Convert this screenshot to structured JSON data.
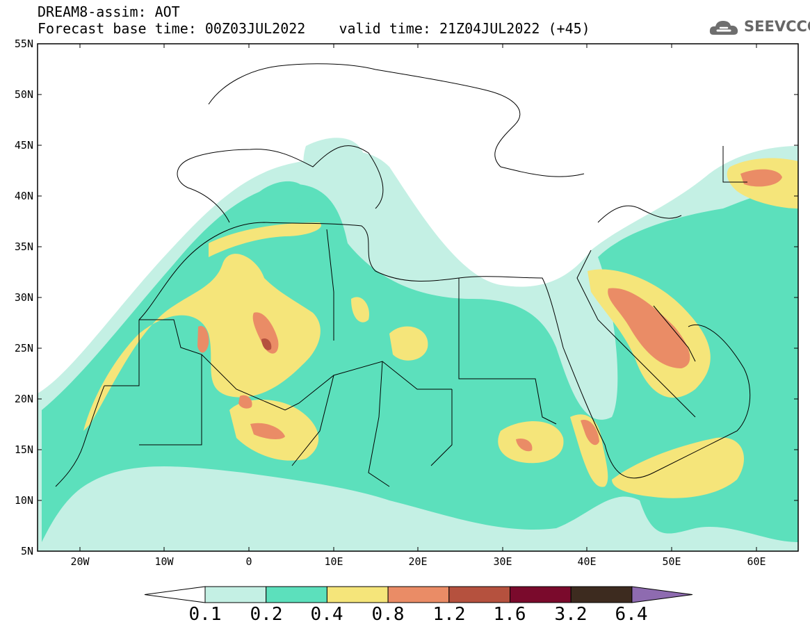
{
  "header": {
    "line1": "DREAM8-assim: AOT",
    "line2": "Forecast base time: 00Z03JUL2022    valid time: 21Z04JUL2022 (+45)"
  },
  "logo": {
    "text": "SEEVCCC",
    "icon": "cloud-icon"
  },
  "map": {
    "lon_range": [
      -25,
      65
    ],
    "lat_range": [
      5,
      55
    ],
    "lat_labels": [
      "55N",
      "50N",
      "45N",
      "40N",
      "35N",
      "30N",
      "25N",
      "20N",
      "15N",
      "10N",
      "5N"
    ],
    "lon_labels": [
      "20W",
      "10W",
      "0",
      "10E",
      "20E",
      "30E",
      "40E",
      "50E",
      "60E"
    ]
  },
  "colorbar": {
    "labels": [
      "0.1",
      "0.2",
      "0.4",
      "0.8",
      "1.2",
      "1.6",
      "3.2",
      "6.4"
    ],
    "colors": [
      "#ffffff",
      "#c4f0e4",
      "#5ce0bc",
      "#f5e57a",
      "#ea8c66",
      "#b5513e",
      "#7a0a2c",
      "#3d2b1f",
      "#8e6bb0"
    ]
  }
}
